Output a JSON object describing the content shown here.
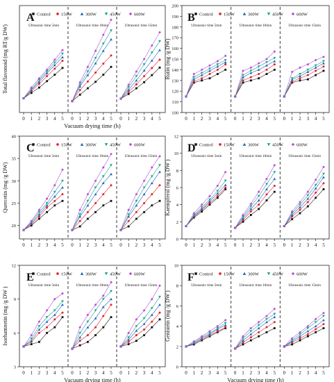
{
  "figure": {
    "colors": {
      "Control": "#111111",
      "150W": "#e0262b",
      "300W": "#1f5fbf",
      "450W": "#16a58a",
      "600W": "#b64fd8"
    }
  },
  "chart_data": [
    {
      "panel": "A",
      "type": "line",
      "ylabel": "Total flavonoid (mg RT/g DW)",
      "xlabel": "Vacuum drying time (h)",
      "ylim": [
        0,
        30
      ],
      "yticks": [],
      "segments": [
        "Ultrasonic time 5min",
        "Ultrasonic time 10min",
        "Ultrasonic time 15min"
      ],
      "x": [
        0,
        1,
        2,
        3,
        4,
        5
      ],
      "series": [
        {
          "name": "Control",
          "values": [
            [
              4.0,
              5.5,
              7.0,
              8.8,
              10.6,
              12.5
            ],
            [
              3.2,
              5.0,
              6.8,
              8.6,
              10.6,
              12.8
            ],
            [
              3.9,
              5.2,
              6.8,
              8.5,
              10.5,
              12.6
            ]
          ]
        },
        {
          "name": "150W",
          "values": [
            [
              4.0,
              6.0,
              8.0,
              10.2,
              12.3,
              14.5
            ],
            [
              3.2,
              6.3,
              8.7,
              11.2,
              13.7,
              16.0
            ],
            [
              3.9,
              5.8,
              7.9,
              10.2,
              12.5,
              14.8
            ]
          ]
        },
        {
          "name": "300W",
          "values": [
            [
              4.0,
              6.3,
              8.6,
              11.0,
              13.3,
              15.5
            ],
            [
              3.2,
              7.3,
              10.5,
              13.8,
              17.3,
              20.5
            ],
            [
              3.9,
              6.4,
              9.0,
              11.8,
              14.6,
              17.5
            ]
          ]
        },
        {
          "name": "450W",
          "values": [
            [
              4.0,
              6.5,
              9.1,
              11.5,
              14.0,
              16.5
            ],
            [
              3.2,
              7.8,
              11.5,
              15.3,
              19.3,
              23.0
            ],
            [
              3.9,
              7.1,
              10.2,
              13.5,
              16.8,
              20.0
            ]
          ]
        },
        {
          "name": "600W",
          "values": [
            [
              4.0,
              7.0,
              9.6,
              12.0,
              14.8,
              17.5
            ],
            [
              3.2,
              8.5,
              12.8,
              17.3,
              21.8,
              26.0
            ],
            [
              3.9,
              7.8,
              11.5,
              15.0,
              18.8,
              22.5
            ]
          ]
        }
      ]
    },
    {
      "panel": "B",
      "type": "line",
      "ylabel": "Rutin (mg /g DW)",
      "xlabel": "",
      "ylim": [
        100,
        200
      ],
      "yticks": [
        100,
        110,
        120,
        130,
        140,
        150,
        160,
        170,
        180,
        190,
        200
      ],
      "segments": [
        "Ultrasonic time 5min",
        "Ultrasonic time 10min",
        "Ultrasonic time 15min"
      ],
      "x": [
        0,
        1,
        2,
        3,
        4,
        5
      ],
      "series": [
        {
          "name": "Control",
          "values": [
            [
              115,
              128,
              130,
              132,
              136,
              140
            ],
            [
              115,
              128,
              130,
              132,
              136,
              140
            ],
            [
              115,
              128,
              130,
              131,
              135,
              139
            ]
          ]
        },
        {
          "name": "150W",
          "values": [
            [
              115,
              129,
              132,
              136,
              140,
              145
            ],
            [
              115,
              130,
              133,
              136,
              140,
              145
            ],
            [
              115,
              129,
              132,
              135,
              139,
              143
            ]
          ]
        },
        {
          "name": "300W",
          "values": [
            [
              115,
              131,
              135,
              139,
              143,
              147
            ],
            [
              115,
              133,
              137,
              140,
              144,
              148
            ],
            [
              115,
              131,
              134,
              138,
              142,
              146
            ]
          ]
        },
        {
          "name": "450W",
          "values": [
            [
              115,
              133,
              137,
              141,
              145,
              149
            ],
            [
              115,
              135,
              139,
              143,
              147,
              151
            ],
            [
              115,
              132,
              136,
              140,
              144,
              148
            ]
          ]
        },
        {
          "name": "600W",
          "values": [
            [
              115,
              136,
              140,
              144,
              148,
              153
            ],
            [
              115,
              139,
              142,
              146,
              150,
              157
            ],
            [
              115,
              138,
              142,
              145,
              149,
              152
            ]
          ]
        }
      ]
    },
    {
      "panel": "C",
      "type": "line",
      "ylabel": "Quercetin (mg /g DW)",
      "xlabel": "",
      "ylim": [
        17,
        40
      ],
      "yticks": [
        20,
        25,
        30,
        35,
        40
      ],
      "segments": [
        "Ultrasonic time 5min",
        "Ultrasonic time 10min",
        "Ultrasonic time 15min"
      ],
      "x": [
        0,
        1,
        2,
        3,
        4,
        5
      ],
      "series": [
        {
          "name": "Control",
          "values": [
            [
              19.0,
              20.0,
              21.5,
              23.0,
              24.5,
              25.5
            ],
            [
              19.0,
              19.8,
              21.5,
              23.0,
              24.5,
              25.5
            ],
            [
              19.0,
              19.8,
              21.5,
              23.0,
              24.5,
              25.5
            ]
          ]
        },
        {
          "name": "150W",
          "values": [
            [
              19.0,
              20.3,
              22.0,
              24.0,
              25.5,
              27.0
            ],
            [
              19.0,
              21.0,
              23.0,
              25.0,
              27.0,
              29.0
            ],
            [
              19.0,
              21.0,
              23.0,
              25.0,
              27.0,
              29.0
            ]
          ]
        },
        {
          "name": "300W",
          "values": [
            [
              19.0,
              20.5,
              22.5,
              24.5,
              26.5,
              28.5
            ],
            [
              19.0,
              22.0,
              24.5,
              27.0,
              29.5,
              31.5
            ],
            [
              19.0,
              22.0,
              24.5,
              27.0,
              29.5,
              32.0
            ]
          ]
        },
        {
          "name": "450W",
          "values": [
            [
              19.0,
              20.8,
              23.0,
              25.0,
              27.5,
              30.0
            ],
            [
              19.0,
              22.5,
              25.5,
              28.5,
              31.0,
              33.5
            ],
            [
              19.0,
              22.5,
              25.5,
              28.5,
              31.0,
              33.5
            ]
          ]
        },
        {
          "name": "600W",
          "values": [
            [
              19.0,
              21.0,
              23.5,
              26.0,
              29.0,
              32.5
            ],
            [
              19.0,
              23.5,
              27.0,
              30.0,
              33.0,
              36.0
            ],
            [
              19.0,
              23.5,
              27.0,
              30.0,
              33.0,
              35.5
            ]
          ]
        }
      ]
    },
    {
      "panel": "D",
      "type": "line",
      "ylabel": "Kaempferol (mg /g DW )",
      "xlabel": "",
      "ylim": [
        0,
        12
      ],
      "yticks": [
        0,
        2,
        4,
        6,
        8,
        10,
        12
      ],
      "segments": [
        "Ultrasonic time 5min",
        "Ultrasonic time 10min",
        "Ultrasonic time 15min"
      ],
      "x": [
        0,
        1,
        2,
        3,
        4,
        5
      ],
      "series": [
        {
          "name": "Control",
          "values": [
            [
              1.5,
              2.5,
              3.2,
              4.0,
              4.8,
              5.8
            ],
            [
              1.3,
              2.0,
              2.8,
              3.5,
              4.5,
              5.5
            ],
            [
              1.5,
              2.3,
              3.0,
              3.8,
              4.8,
              5.8
            ]
          ]
        },
        {
          "name": "150W",
          "values": [
            [
              1.5,
              2.6,
              3.4,
              4.2,
              5.0,
              6.0
            ],
            [
              1.3,
              2.2,
              3.2,
              4.0,
              5.2,
              6.2
            ],
            [
              1.5,
              2.6,
              3.4,
              4.3,
              5.4,
              6.5
            ]
          ]
        },
        {
          "name": "300W",
          "values": [
            [
              1.5,
              2.7,
              3.5,
              4.4,
              5.3,
              6.3
            ],
            [
              1.3,
              2.4,
              3.5,
              4.5,
              5.8,
              7.0
            ],
            [
              1.5,
              2.8,
              3.7,
              4.7,
              5.9,
              7.2
            ]
          ]
        },
        {
          "name": "450W",
          "values": [
            [
              1.5,
              2.8,
              3.7,
              4.6,
              5.6,
              6.8
            ],
            [
              1.3,
              2.6,
              3.8,
              5.0,
              6.4,
              7.8
            ],
            [
              1.5,
              3.0,
              4.0,
              5.1,
              6.3,
              7.6
            ]
          ]
        },
        {
          "name": "600W",
          "values": [
            [
              1.5,
              3.0,
              4.0,
              5.0,
              6.2,
              7.8
            ],
            [
              1.3,
              2.8,
              4.1,
              5.5,
              7.0,
              8.6
            ],
            [
              1.5,
              3.2,
              4.3,
              5.5,
              6.9,
              8.4
            ]
          ]
        }
      ]
    },
    {
      "panel": "E",
      "type": "line",
      "ylabel": "Isorhamnetin (mg /g DW )",
      "xlabel": "Vacuum drying time (h)",
      "ylim": [
        3,
        12
      ],
      "yticks": [
        3,
        6,
        9,
        12
      ],
      "segments": [
        "Ultrasonic time 5min",
        "Ultrasonic time 10min",
        "Ultrasonic time 15min"
      ],
      "x": [
        0,
        1,
        2,
        3,
        4,
        5
      ],
      "series": [
        {
          "name": "Control",
          "values": [
            [
              4.8,
              5.0,
              5.2,
              6.0,
              6.5,
              7.4
            ],
            [
              4.6,
              4.9,
              5.2,
              5.8,
              6.5,
              7.4
            ],
            [
              4.8,
              5.0,
              5.3,
              5.8,
              6.5,
              7.2
            ]
          ]
        },
        {
          "name": "150W",
          "values": [
            [
              4.8,
              5.2,
              6.0,
              6.5,
              7.2,
              7.8
            ],
            [
              4.6,
              5.3,
              5.8,
              6.5,
              7.5,
              8.5
            ],
            [
              4.8,
              5.2,
              5.8,
              6.3,
              7.0,
              7.8
            ]
          ]
        },
        {
          "name": "300W",
          "values": [
            [
              4.8,
              5.3,
              6.3,
              7.0,
              7.6,
              8.5
            ],
            [
              4.6,
              5.6,
              6.5,
              7.3,
              8.3,
              9.0
            ],
            [
              4.8,
              5.4,
              6.2,
              6.8,
              7.6,
              8.5
            ]
          ]
        },
        {
          "name": "450W",
          "values": [
            [
              4.8,
              5.5,
              6.6,
              7.4,
              8.0,
              8.8
            ],
            [
              4.6,
              6.0,
              7.0,
              8.0,
              9.0,
              9.7
            ],
            [
              4.8,
              5.6,
              6.6,
              7.3,
              8.2,
              9.2
            ]
          ]
        },
        {
          "name": "600W",
          "values": [
            [
              4.8,
              5.8,
              7.0,
              8.0,
              9.0,
              9.5
            ],
            [
              4.6,
              6.5,
              7.6,
              8.5,
              9.3,
              10.5
            ],
            [
              4.8,
              6.0,
              7.2,
              8.0,
              9.0,
              10.2
            ]
          ]
        }
      ]
    },
    {
      "panel": "F",
      "type": "line",
      "ylabel": "Genistein (mg /g DW )",
      "xlabel": "Vacuum drying time (h)",
      "ylim": [
        0,
        10
      ],
      "yticks": [
        0,
        2,
        4,
        6,
        8,
        10
      ],
      "segments": [
        "Ultrasonic time 5min",
        "Ultrasonic time 10min",
        "Ultrasonic time 15min"
      ],
      "x": [
        0,
        1,
        2,
        3,
        4,
        5
      ],
      "series": [
        {
          "name": "Control",
          "values": [
            [
              2.0,
              2.2,
              2.6,
              3.0,
              3.4,
              3.8
            ],
            [
              1.8,
              2.2,
              2.6,
              3.0,
              3.4,
              3.8
            ],
            [
              2.0,
              2.2,
              2.6,
              3.0,
              3.4,
              3.8
            ]
          ]
        },
        {
          "name": "150W",
          "values": [
            [
              2.0,
              2.3,
              2.7,
              3.1,
              3.5,
              3.9
            ],
            [
              1.8,
              2.4,
              2.9,
              3.4,
              3.9,
              4.4
            ],
            [
              2.0,
              2.4,
              2.8,
              3.2,
              3.7,
              4.2
            ]
          ]
        },
        {
          "name": "300W",
          "values": [
            [
              2.0,
              2.3,
              2.8,
              3.2,
              3.7,
              4.1
            ],
            [
              1.8,
              2.6,
              3.2,
              3.8,
              4.4,
              4.9
            ],
            [
              2.0,
              2.5,
              3.0,
              3.5,
              4.0,
              4.6
            ]
          ]
        },
        {
          "name": "450W",
          "values": [
            [
              2.0,
              2.4,
              2.9,
              3.3,
              3.8,
              4.3
            ],
            [
              1.8,
              2.8,
              3.5,
              4.1,
              4.7,
              5.2
            ],
            [
              2.0,
              2.6,
              3.2,
              3.8,
              4.4,
              5.0
            ]
          ]
        },
        {
          "name": "600W",
          "values": [
            [
              2.0,
              2.5,
              3.0,
              3.5,
              4.0,
              4.6
            ],
            [
              1.8,
              3.0,
              3.8,
              4.4,
              5.0,
              5.7
            ],
            [
              2.0,
              2.8,
              3.4,
              4.0,
              4.7,
              5.3
            ]
          ]
        }
      ]
    }
  ]
}
